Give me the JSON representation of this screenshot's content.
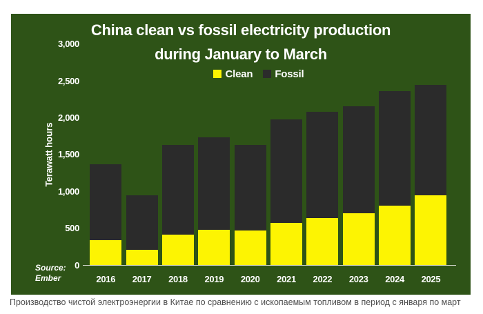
{
  "figure": {
    "background": "#2e5317",
    "title_line1": "China clean vs fossil electricity production",
    "title_line2": "during January to March",
    "ylabel": "Terawatt hours",
    "source_line1": "Source:",
    "source_line2": "Ember"
  },
  "caption": "Производство чистой электроэнергии в Китае по сравнению с ископаемым топливом в период с января по март",
  "chart_data": {
    "type": "bar",
    "stacked": true,
    "title": "China clean vs fossil electricity production during January to March",
    "ylabel": "Terawatt hours",
    "unit": "TWh",
    "categories": [
      "2016",
      "2017",
      "2018",
      "2019",
      "2020",
      "2021",
      "2022",
      "2023",
      "2024",
      "2025"
    ],
    "series": [
      {
        "name": "Clean",
        "color": "#fdf402",
        "values": [
          335,
          210,
          410,
          480,
          465,
          570,
          640,
          700,
          805,
          950
        ]
      },
      {
        "name": "Fossil",
        "color": "#2b2b2b",
        "values": [
          1030,
          740,
          1220,
          1250,
          1165,
          1410,
          1440,
          1460,
          1560,
          1500
        ]
      }
    ],
    "totals": [
      1365,
      950,
      1630,
      1730,
      1630,
      1980,
      2080,
      2160,
      2365,
      2450
    ],
    "ylim": [
      0,
      3000
    ],
    "yticks": [
      0,
      500,
      1000,
      1500,
      2000,
      2500,
      3000
    ],
    "grid": false,
    "legend_position": "top-center",
    "source": "Source: Ember"
  }
}
